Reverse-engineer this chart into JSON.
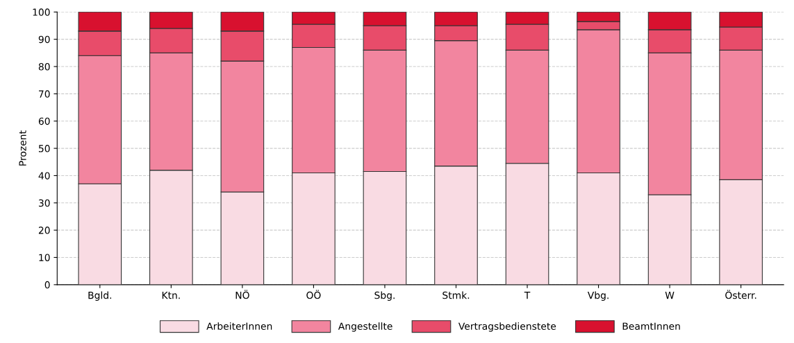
{
  "chart_data": {
    "type": "bar",
    "stacked": true,
    "ylabel": "Prozent",
    "categories": [
      "Bgld.",
      "Ktn.",
      "NÖ",
      "OÖ",
      "Sbg.",
      "Stmk.",
      "T",
      "Vbg.",
      "W",
      "Österr."
    ],
    "series": [
      {
        "name": "ArbeiterInnen",
        "color": "#f9dbe3",
        "values": [
          37,
          42,
          34,
          41,
          41.5,
          43.5,
          44.5,
          41,
          33,
          38.5
        ]
      },
      {
        "name": "Angestellte",
        "color": "#f2859f",
        "values": [
          47,
          43,
          48,
          46,
          44.5,
          46,
          41.5,
          52.5,
          52,
          47.5
        ]
      },
      {
        "name": "Vertragsbedienstete",
        "color": "#e84c6a",
        "values": [
          9,
          9,
          11,
          8.5,
          9,
          5.5,
          9.5,
          3,
          8.5,
          8.5
        ]
      },
      {
        "name": "BeamtInnen",
        "color": "#d8112f",
        "values": [
          7,
          6,
          7,
          4.5,
          5,
          5,
          4.5,
          3.5,
          6.5,
          5.5
        ]
      }
    ],
    "ylim": [
      0,
      100
    ],
    "yticks": [
      0,
      10,
      20,
      30,
      40,
      50,
      60,
      70,
      80,
      90,
      100
    ],
    "grid": "y",
    "legend": "bottom"
  }
}
